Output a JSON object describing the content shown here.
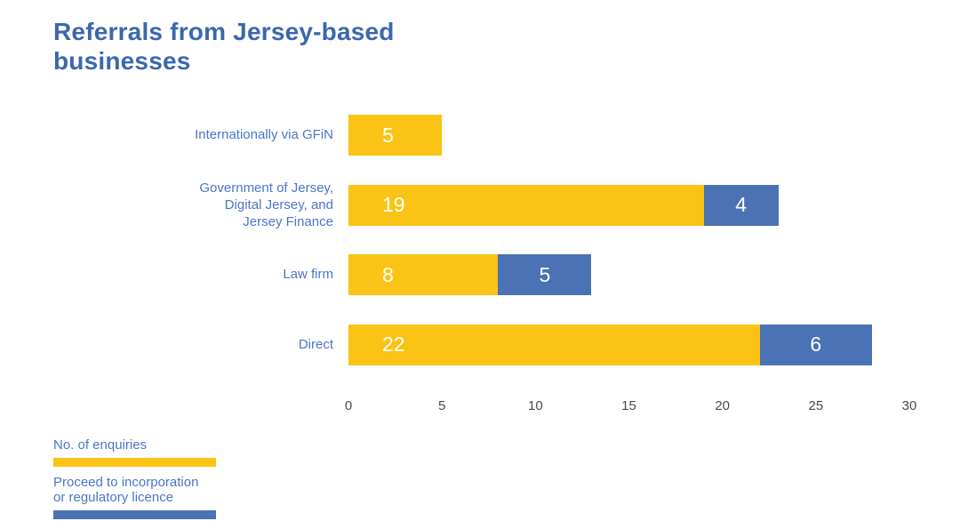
{
  "title": "Referrals from Jersey-based businesses",
  "colors": {
    "series_yellow": "#FAC315",
    "series_blue": "#4A72B5",
    "title_text": "#3A67B0",
    "label_text": "#4A76C8",
    "tick_text": "#4B4B4B",
    "bar_value_text": "#FFFFFF"
  },
  "chart_data": {
    "type": "bar",
    "orientation": "horizontal",
    "stacked": true,
    "title": "Referrals from Jersey-based businesses",
    "categories": [
      [
        "Internationally via GFiN"
      ],
      [
        "Government of Jersey,",
        "Digital Jersey, and",
        "Jersey Finance"
      ],
      [
        "Law firm"
      ],
      [
        "Direct"
      ]
    ],
    "series": [
      {
        "name": "No. of enquiries",
        "color": "#FAC315",
        "values": [
          5,
          19,
          8,
          22
        ]
      },
      {
        "name": "Proceed to incorporation or regulatory licence",
        "color": "#4A72B5",
        "values": [
          0,
          4,
          5,
          6
        ]
      }
    ],
    "data_labels_shown": true,
    "xlabel": "",
    "ylabel": "",
    "xlim": [
      0,
      30
    ],
    "xticks": [
      0,
      5,
      10,
      15,
      20,
      25,
      30
    ],
    "grid": false,
    "legend_position": "bottom-left"
  },
  "legend": {
    "items": [
      {
        "lines": [
          "No. of enquiries"
        ],
        "color": "#FAC315"
      },
      {
        "lines": [
          "Proceed to incorporation",
          "or regulatory licence"
        ],
        "color": "#4A72B5"
      }
    ]
  }
}
